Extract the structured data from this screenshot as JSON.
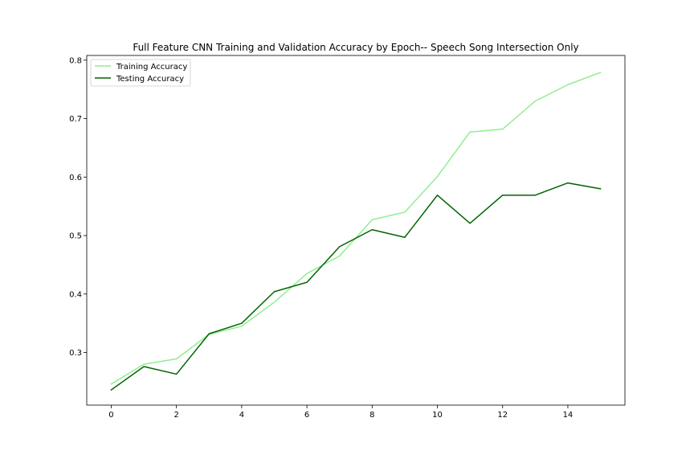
{
  "chart_data": {
    "type": "line",
    "title": "Full Feature CNN Training and Validation Accuracy by Epoch-- Speech Song Intersection Only",
    "xlabel": "",
    "ylabel": "",
    "x": [
      0,
      1,
      2,
      3,
      4,
      5,
      6,
      7,
      8,
      9,
      10,
      11,
      12,
      13,
      14,
      15
    ],
    "xlim": [
      -0.75,
      15.75
    ],
    "ylim": [
      0.21,
      0.808
    ],
    "xticks": [
      0,
      2,
      4,
      6,
      8,
      10,
      12,
      14
    ],
    "yticks": [
      0.3,
      0.4,
      0.5,
      0.6,
      0.7,
      0.8
    ],
    "ytick_labels": [
      "0.3",
      "0.4",
      "0.5",
      "0.6",
      "0.7",
      "0.8"
    ],
    "grid": false,
    "legend_position": "upper-left",
    "series": [
      {
        "name": "Training Accuracy",
        "color": "#90ee90",
        "values": [
          0.246,
          0.28,
          0.289,
          0.331,
          0.345,
          0.386,
          0.435,
          0.465,
          0.527,
          0.54,
          0.601,
          0.677,
          0.682,
          0.73,
          0.758,
          0.779
        ]
      },
      {
        "name": "Testing Accuracy",
        "color": "#006400",
        "values": [
          0.236,
          0.276,
          0.263,
          0.332,
          0.35,
          0.404,
          0.42,
          0.481,
          0.51,
          0.497,
          0.569,
          0.521,
          0.569,
          0.569,
          0.59,
          0.58
        ]
      }
    ]
  }
}
